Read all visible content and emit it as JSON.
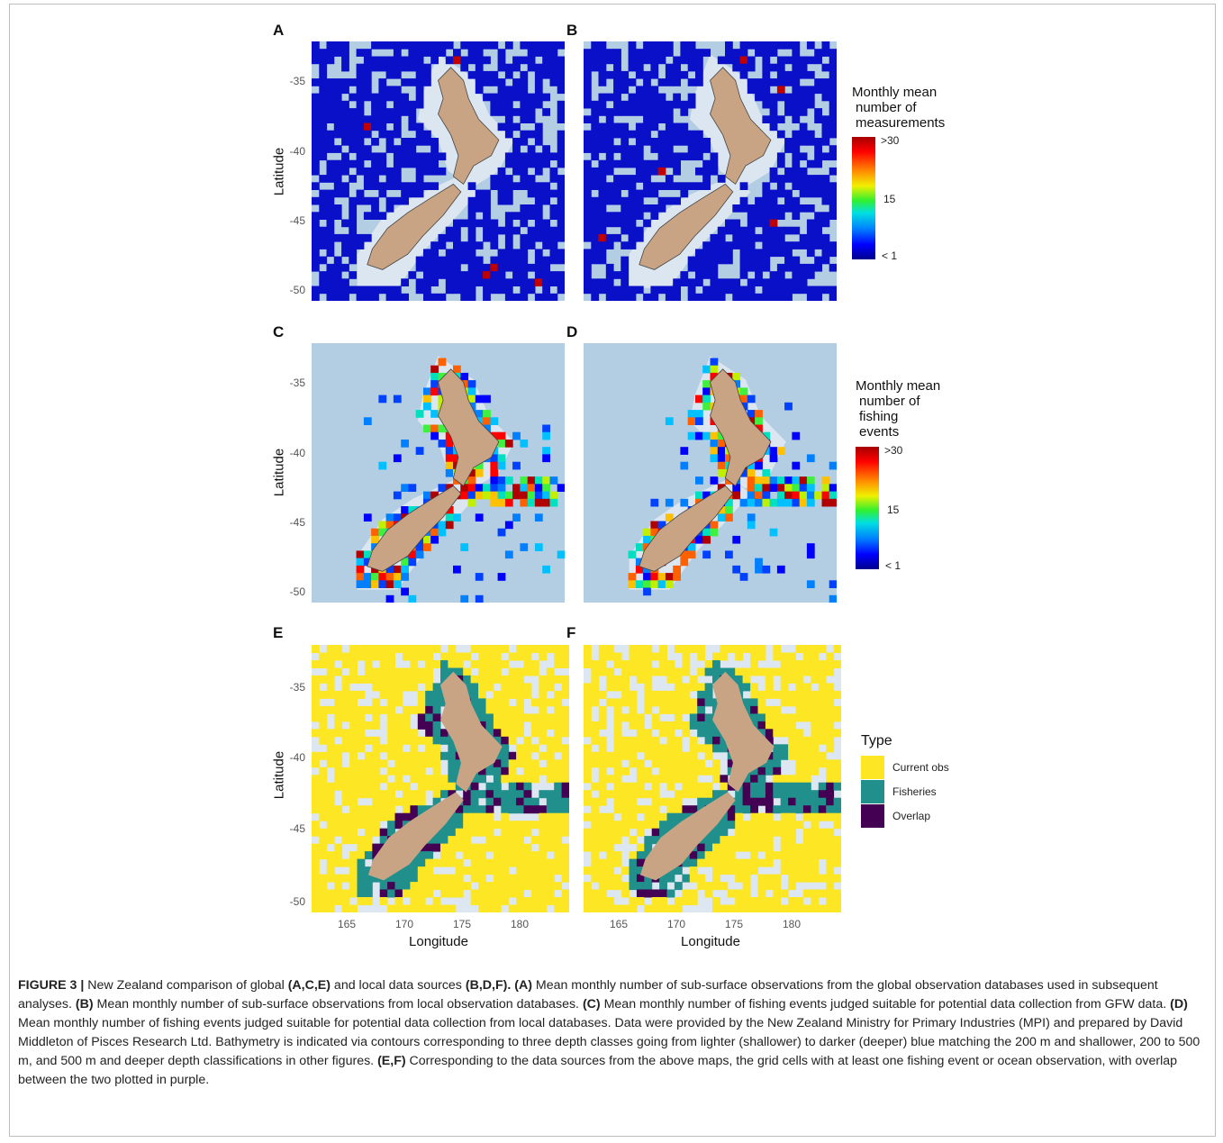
{
  "panels": [
    {
      "letter": "A",
      "kind": "measurements"
    },
    {
      "letter": "B",
      "kind": "measurements"
    },
    {
      "letter": "C",
      "kind": "fishing"
    },
    {
      "letter": "D",
      "kind": "fishing"
    },
    {
      "letter": "E",
      "kind": "type"
    },
    {
      "letter": "F",
      "kind": "type"
    }
  ],
  "axes": {
    "ylabel": "Latitude",
    "xlabel": "Longitude",
    "yticks": [
      "-35",
      "-40",
      "-45",
      "-50"
    ],
    "xticks": [
      "165",
      "170",
      "175",
      "180"
    ]
  },
  "legend_measurements": {
    "title_lines": [
      "Monthly mean",
      "number of",
      "measurements"
    ],
    "ticks": [
      ">30",
      "15",
      "< 1"
    ]
  },
  "legend_fishing": {
    "title_lines": [
      "Monthly mean",
      "number of",
      "fishing",
      "events"
    ],
    "ticks": [
      ">30",
      "15",
      "< 1"
    ]
  },
  "legend_type": {
    "title": "Type",
    "items": [
      {
        "label": "Current obs",
        "color": "#fde725"
      },
      {
        "label": "Fisheries",
        "color": "#21908c"
      },
      {
        "label": "Overlap",
        "color": "#440154"
      }
    ]
  },
  "colors": {
    "ocean_light": "#b3cde3",
    "shelf": "#dce6f0",
    "land": "#c8a485",
    "grid_blue": "#0a10c8",
    "empty_cell": "#dde7f2"
  },
  "caption": {
    "label": "FIGURE 3 |",
    "segments": [
      {
        "t": " New Zealand comparison of global ",
        "b": false
      },
      {
        "t": "(A,C,E)",
        "b": true
      },
      {
        "t": " and local data sources ",
        "b": false
      },
      {
        "t": "(B,D,F).",
        "b": true
      },
      {
        "t": " ",
        "b": false
      },
      {
        "t": "(A)",
        "b": true
      },
      {
        "t": " Mean monthly number of sub-surface observations from the global observation databases used in subsequent analyses. ",
        "b": false
      },
      {
        "t": "(B)",
        "b": true
      },
      {
        "t": " Mean monthly number of sub-surface observations from local observation databases. ",
        "b": false
      },
      {
        "t": "(C)",
        "b": true
      },
      {
        "t": " Mean monthly number of fishing events judged suitable for potential data collection from GFW data. ",
        "b": false
      },
      {
        "t": "(D)",
        "b": true
      },
      {
        "t": " Mean monthly number of fishing events judged suitable for potential data collection from local databases. Data were provided by the New Zealand Ministry for Primary Industries (MPI) and prepared by David Middleton of Pisces Research Ltd. Bathymetry is indicated via contours corresponding to three depth classes going from lighter (shallower) to darker (deeper) blue matching the 200 m and shallower, 200 to 500 m, and 500 m and deeper depth classifications in other figures. ",
        "b": false
      },
      {
        "t": "(E,F)",
        "b": true
      },
      {
        "t": " Corresponding to the data sources from the above maps, the grid cells with at least one fishing event or ocean observation, with overlap between the two plotted in purple.",
        "b": false
      }
    ]
  }
}
